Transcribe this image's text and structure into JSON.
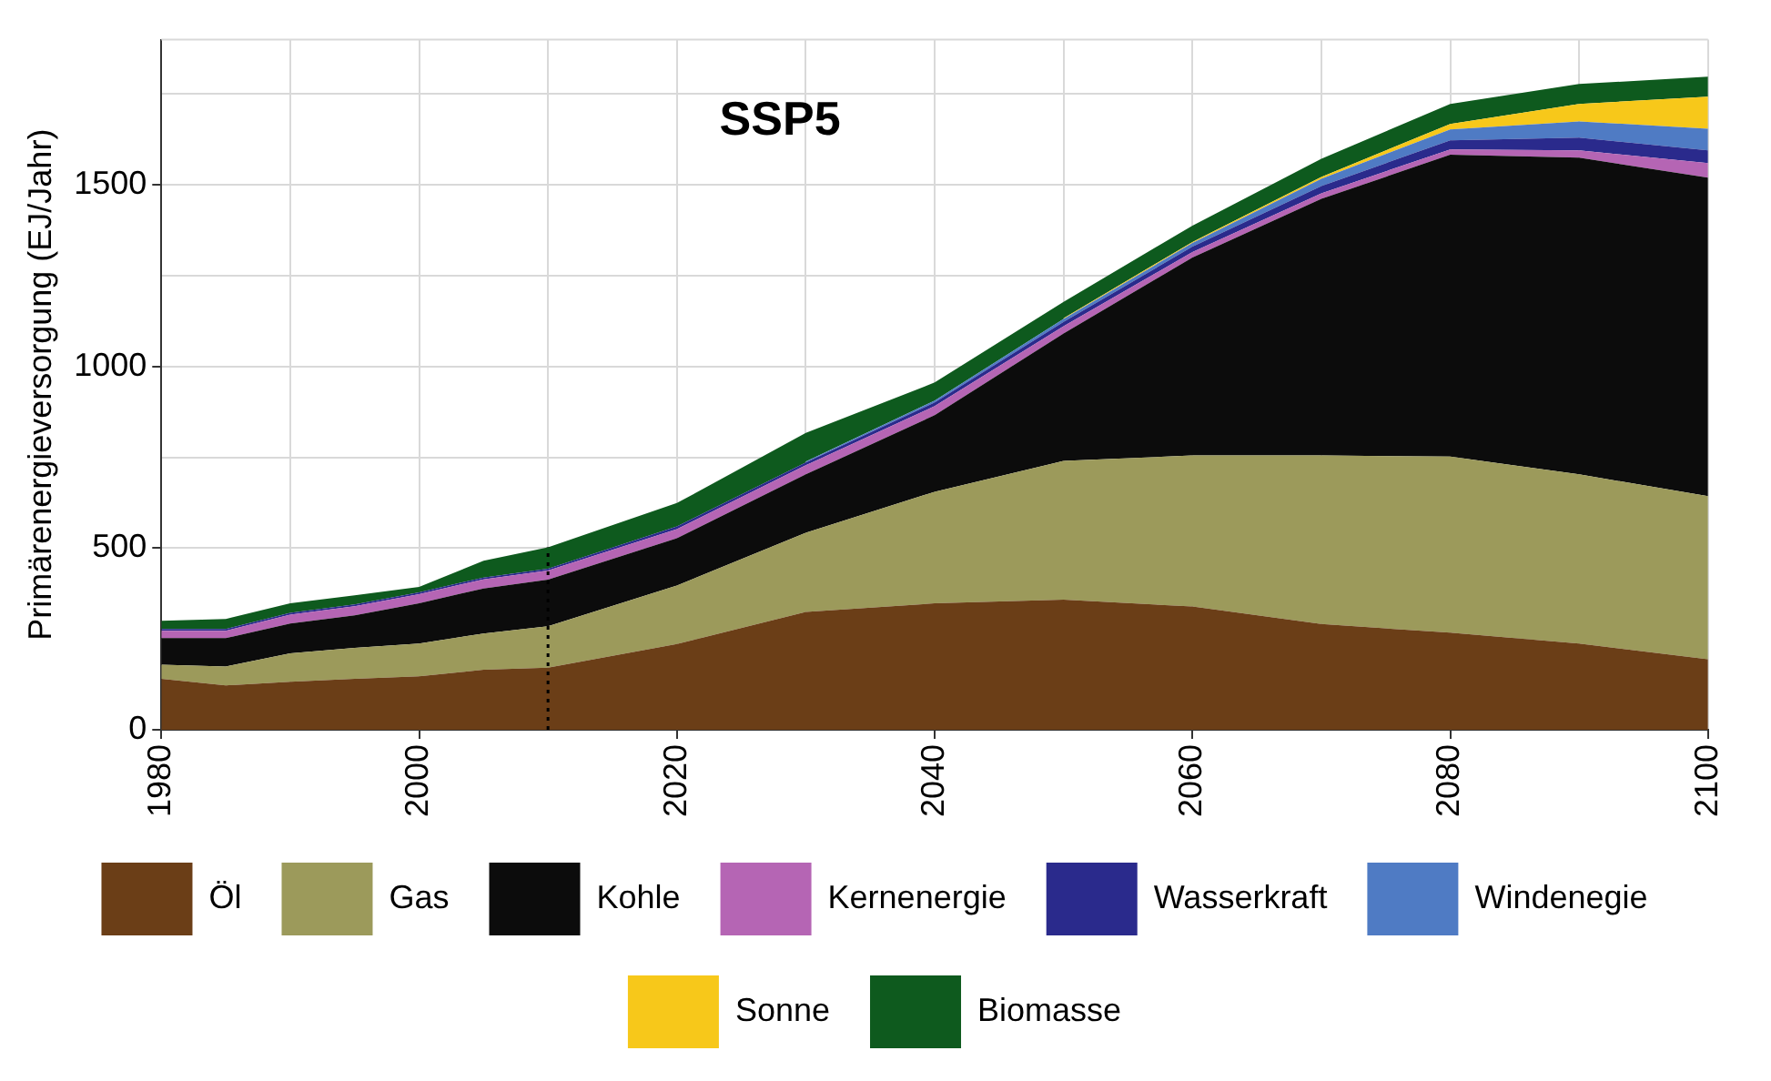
{
  "chart_data": {
    "type": "area",
    "title": "SSP5",
    "ylabel": "Primärenergieversorgung (EJ/Jahr)",
    "stacked": true,
    "x": [
      1980,
      1985,
      1990,
      1995,
      2000,
      2005,
      2010,
      2020,
      2030,
      2040,
      2050,
      2060,
      2070,
      2080,
      2090,
      2100
    ],
    "xlim": [
      1980,
      2100
    ],
    "xticks": [
      1980,
      {
        "value": 1990,
        "label": null
      },
      2000,
      {
        "value": 2010,
        "label": null
      },
      2020,
      {
        "value": 2030,
        "label": null
      },
      2040,
      {
        "value": 2050,
        "label": null
      },
      2060,
      {
        "value": 2070,
        "label": null
      },
      2080,
      {
        "value": 2090,
        "label": null
      },
      2100
    ],
    "ylim": [
      0,
      1900
    ],
    "yticks": [
      0,
      {
        "value": 250,
        "label": null
      },
      500,
      {
        "value": 750,
        "label": null
      },
      1000,
      {
        "value": 1250,
        "label": null
      },
      1500,
      {
        "value": 1750,
        "label": null
      }
    ],
    "grid": true,
    "legend": "bottom",
    "ref_lines": [
      {
        "axis": "x",
        "value": 2010,
        "color": "#000000",
        "line_style": "dotted"
      }
    ],
    "series": [
      {
        "name": "Öl",
        "color": "#6b3e17",
        "values": [
          140,
          122,
          132,
          140,
          147,
          165,
          171,
          236,
          324,
          348,
          358,
          339,
          291,
          267,
          237,
          194
        ]
      },
      {
        "name": "Gas",
        "color": "#9c9a5b",
        "values": [
          39,
          52,
          78,
          85,
          90,
          100,
          114,
          161,
          218,
          307,
          382,
          416,
          464,
          485,
          466,
          449
        ]
      },
      {
        "name": "Kohle",
        "color": "#0c0c0c",
        "values": [
          73,
          78,
          82,
          90,
          111,
          124,
          128,
          130,
          161,
          211,
          351,
          545,
          707,
          831,
          872,
          877
        ]
      },
      {
        "name": "Kernenergie",
        "color": "#b565b4",
        "values": [
          20,
          20,
          25,
          25,
          25,
          25,
          25,
          25,
          25,
          25,
          20,
          15,
          15,
          15,
          20,
          40
        ]
      },
      {
        "name": "Wasserkraft",
        "color": "#2a2a8c",
        "values": [
          5,
          5,
          5,
          5,
          5,
          5,
          5,
          8,
          8,
          10,
          12,
          15,
          20,
          25,
          35,
          35
        ]
      },
      {
        "name": "Windenegie",
        "color": "#4f7bc4",
        "values": [
          null,
          null,
          null,
          null,
          null,
          null,
          null,
          null,
          2,
          5,
          8,
          10,
          20,
          30,
          45,
          60
        ]
      },
      {
        "name": "Sonne",
        "color": "#f7c81a",
        "values": [
          null,
          null,
          null,
          null,
          null,
          null,
          null,
          null,
          null,
          null,
          2,
          3,
          5,
          15,
          48,
          88
        ]
      },
      {
        "name": "Biomasse",
        "color": "#0e5a1e",
        "values": [
          23,
          28,
          26,
          25,
          15,
          46,
          59,
          64,
          79,
          50,
          45,
          45,
          50,
          55,
          55,
          55
        ]
      }
    ]
  }
}
